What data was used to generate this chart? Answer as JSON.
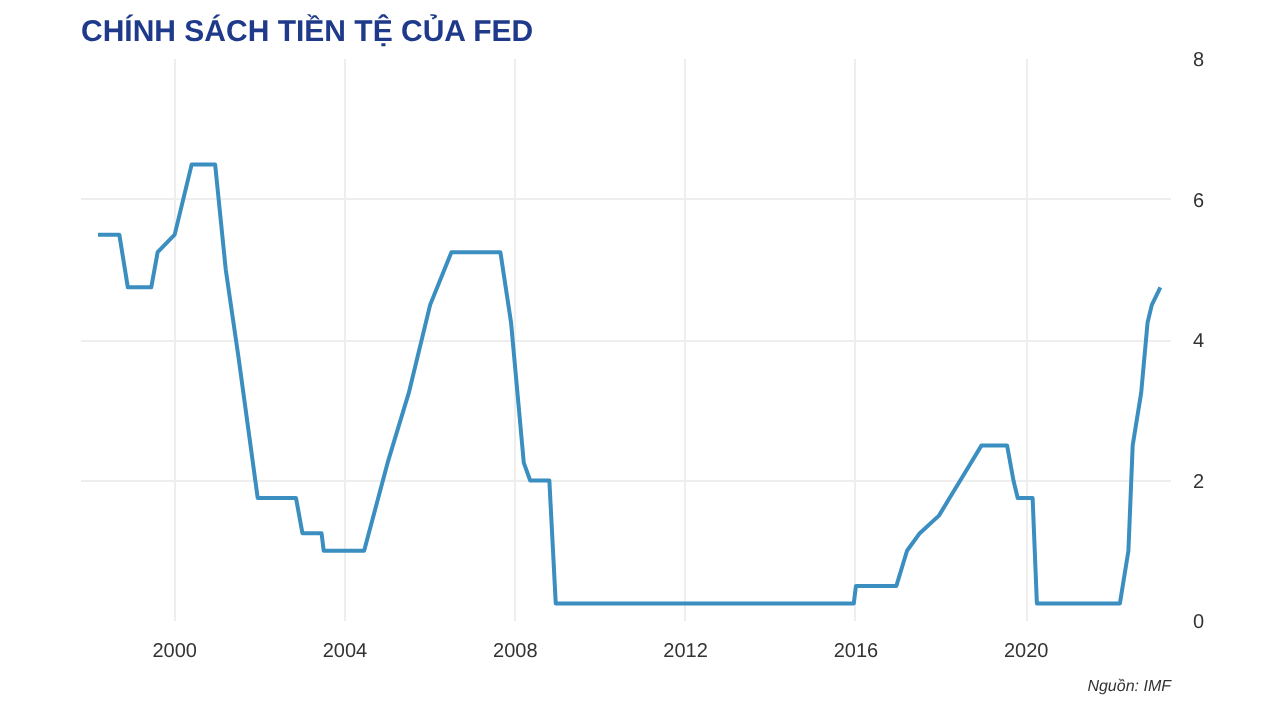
{
  "chart_data": {
    "type": "line",
    "title": "CHÍNH SÁCH TIỀN TỆ CỦA FED",
    "x": [
      1998.2,
      1998.7,
      1998.9,
      1999.45,
      1999.6,
      2000.0,
      2000.4,
      2000.95,
      2001.2,
      2001.5,
      2001.95,
      2002.85,
      2003.0,
      2003.45,
      2003.5,
      2004.45,
      2005.0,
      2005.5,
      2006.0,
      2006.5,
      2007.65,
      2007.9,
      2008.2,
      2008.35,
      2008.8,
      2008.95,
      2015.95,
      2016.0,
      2016.95,
      2017.2,
      2017.5,
      2017.95,
      2018.2,
      2018.45,
      2018.7,
      2018.95,
      2019.55,
      2019.7,
      2019.8,
      2020.15,
      2020.25,
      2022.2,
      2022.4,
      2022.5,
      2022.7,
      2022.85,
      2022.95,
      2023.15
    ],
    "series": [
      {
        "color": "#3b8ec0",
        "values": [
          5.5,
          5.5,
          4.75,
          4.75,
          5.25,
          5.5,
          6.5,
          6.5,
          5.0,
          3.75,
          1.75,
          1.75,
          1.25,
          1.25,
          1.0,
          1.0,
          2.25,
          3.25,
          4.5,
          5.25,
          5.25,
          4.25,
          2.25,
          2.0,
          2.0,
          0.25,
          0.25,
          0.5,
          0.5,
          1.0,
          1.25,
          1.5,
          1.75,
          2.0,
          2.25,
          2.5,
          2.5,
          2.0,
          1.75,
          1.75,
          0.25,
          0.25,
          1.0,
          2.5,
          3.25,
          4.25,
          4.5,
          4.75
        ]
      }
    ],
    "xlim": [
      1997.8,
      2023.4
    ],
    "xticks": [
      2000,
      2004,
      2008,
      2012,
      2016,
      2020
    ],
    "ylim": [
      0,
      8
    ],
    "yticks": [
      0,
      2,
      4,
      6,
      8
    ],
    "grid": true,
    "annotations": [
      "Nguồn: IMF"
    ]
  }
}
